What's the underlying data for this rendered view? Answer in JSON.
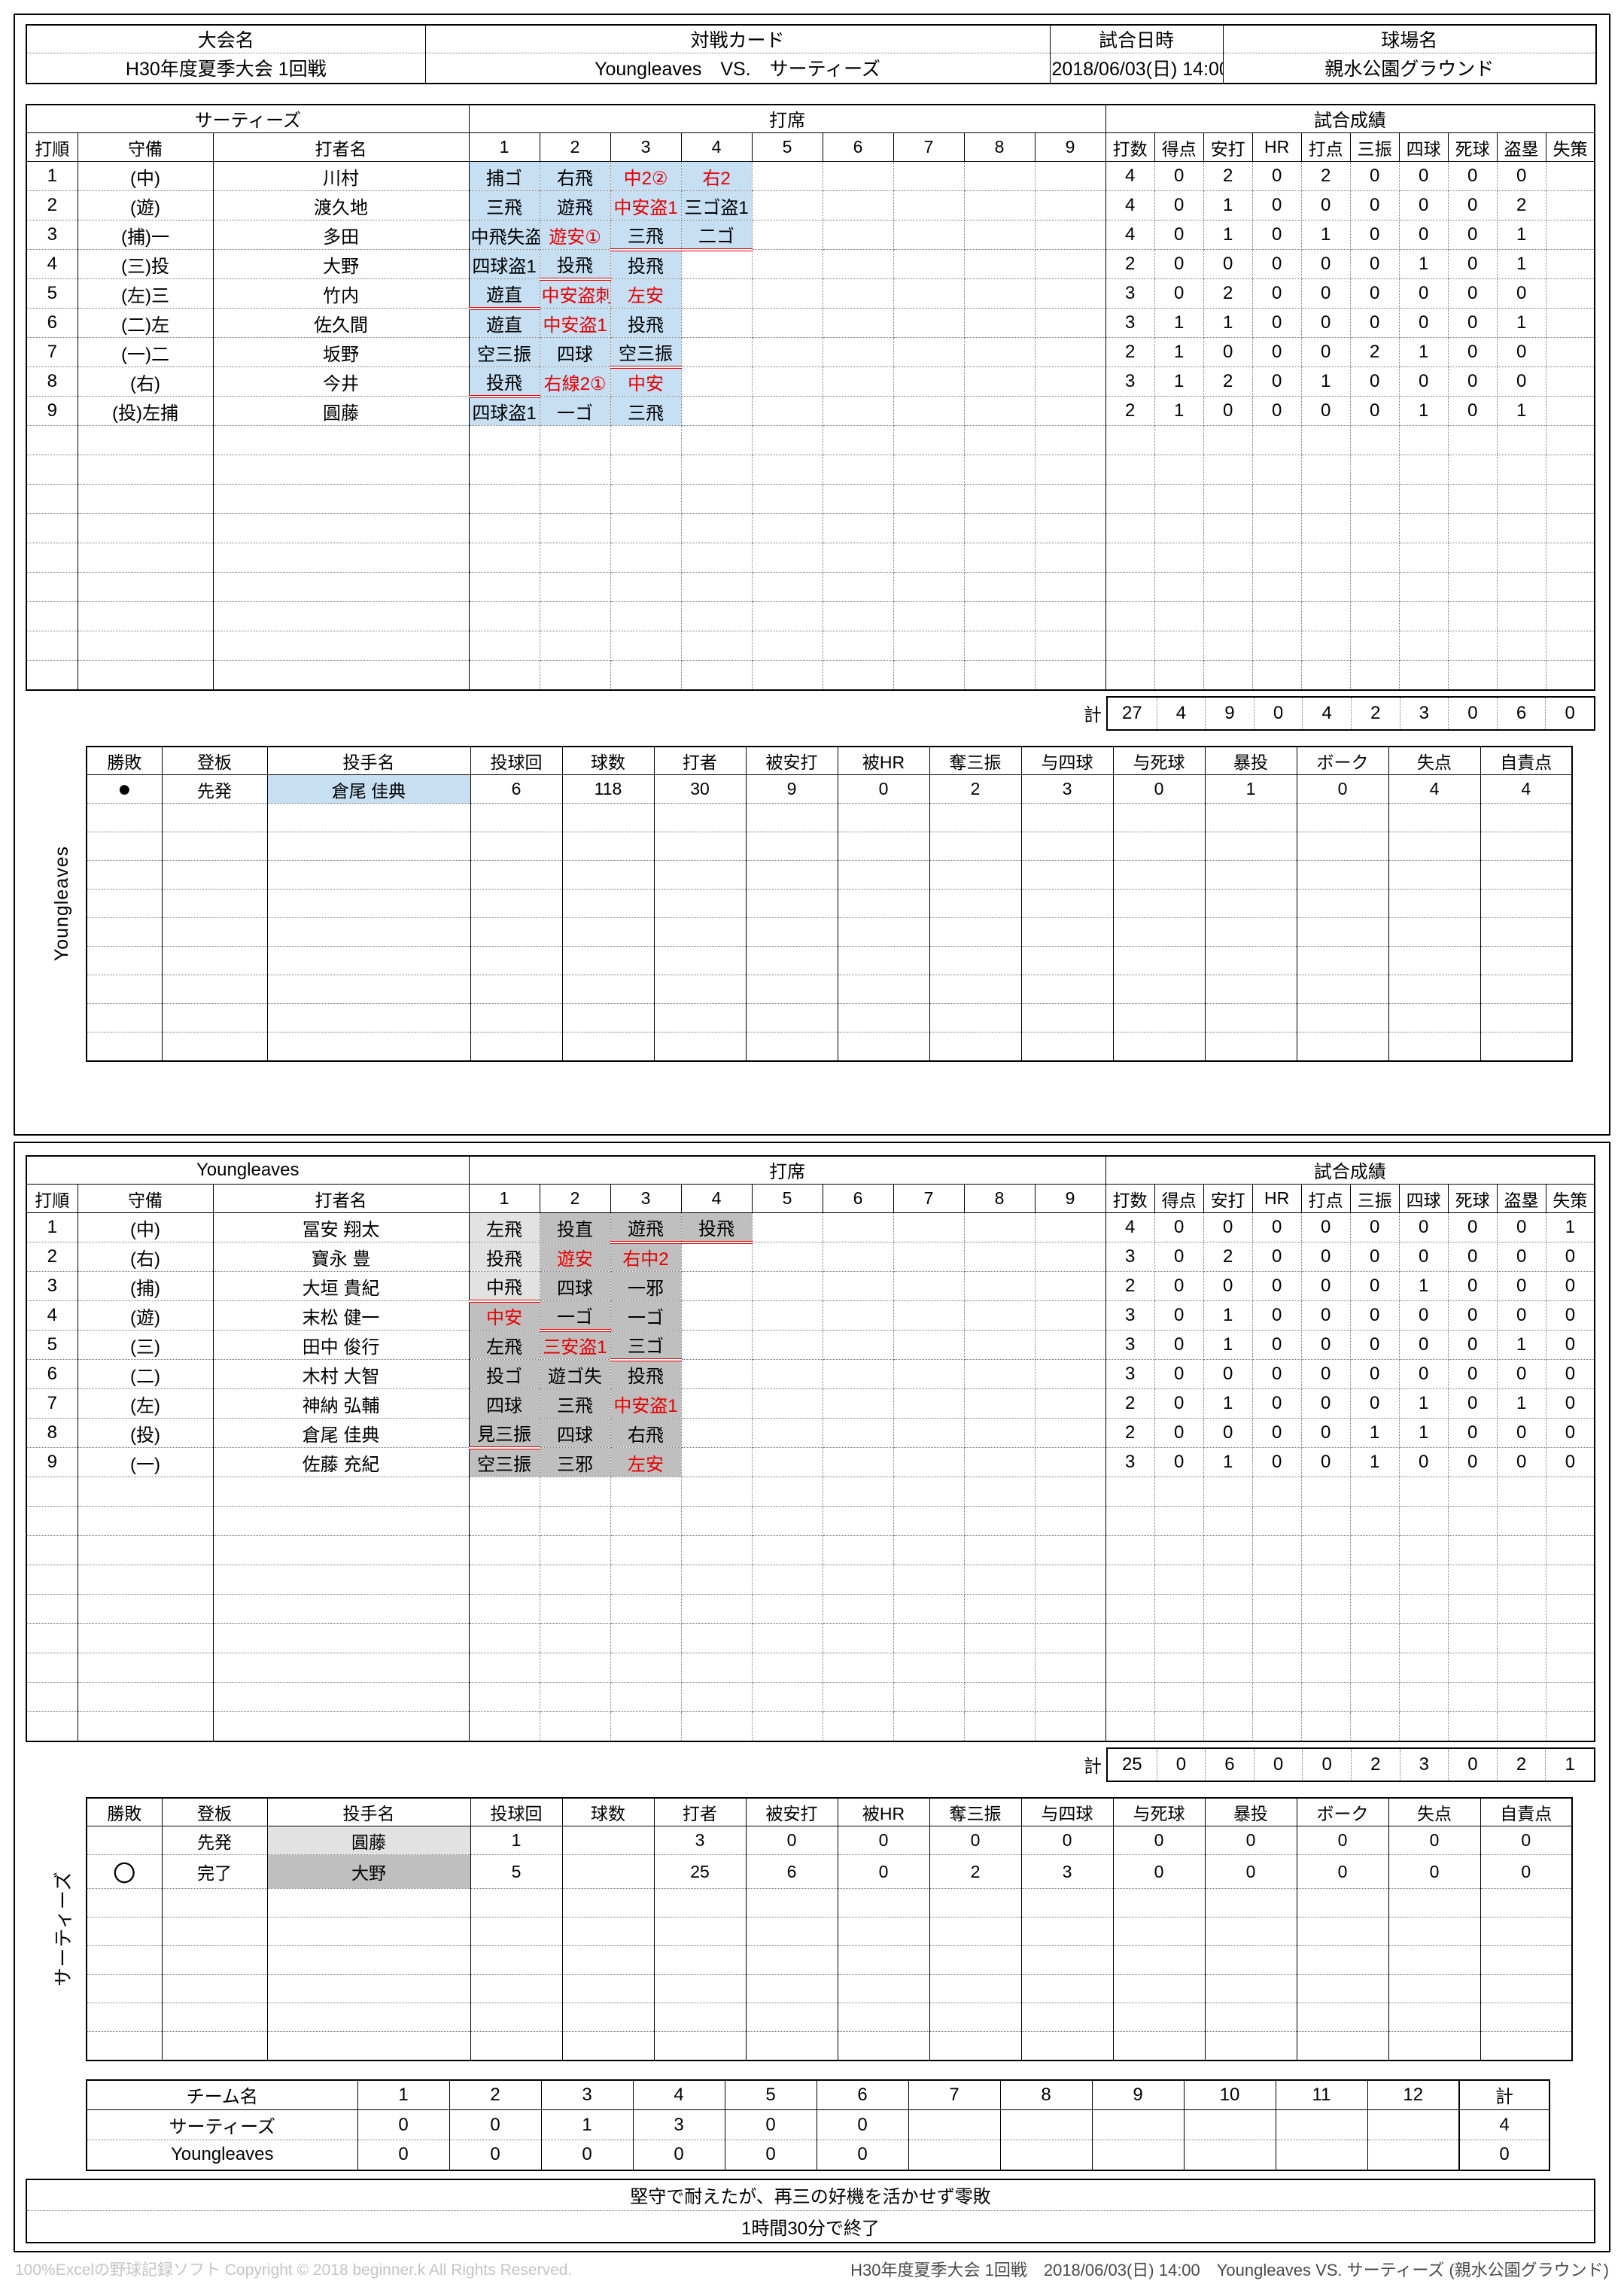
{
  "colors": {
    "highlight_blue": "#c6dff2",
    "highlight_gray": "#bfbfbf",
    "highlight_gray_light": "#e2e2e2",
    "accent_red": "#e80000"
  },
  "info": {
    "headers": [
      "大会名",
      "対戦カード",
      "試合日時",
      "球場名"
    ],
    "tournament": "H30年度夏季大会 1回戦",
    "matchup": "Youngleaves　VS.　サーティーズ",
    "datetime": "2018/06/03(日) 14:00",
    "venue": "親水公園グラウンド"
  },
  "batting_header": {
    "order": "打順",
    "position": "守備",
    "batter": "打者名",
    "seat": "打席",
    "results": "試合成績",
    "innings": [
      "1",
      "2",
      "3",
      "4",
      "5",
      "6",
      "7",
      "8",
      "9"
    ],
    "stats": [
      "打数",
      "得点",
      "安打",
      "HR",
      "打点",
      "三振",
      "四球",
      "死球",
      "盗塁",
      "失策"
    ],
    "total_label": "計"
  },
  "tables": [
    {
      "team": "サーティーズ",
      "highlight": "#c6dff2",
      "empty_rows": 9,
      "rows": [
        {
          "no": "1",
          "pos": "(中)",
          "name": "川村",
          "ab": [
            {
              "t": "捕ゴ"
            },
            {
              "t": "右飛"
            },
            {
              "t": "中2②",
              "r": true
            },
            {
              "t": "右2",
              "r": true
            }
          ],
          "stats": [
            "4",
            "0",
            "2",
            "0",
            "2",
            "0",
            "0",
            "0",
            "0",
            ""
          ]
        },
        {
          "no": "2",
          "pos": "(遊)",
          "name": "渡久地",
          "ab": [
            {
              "t": "三飛"
            },
            {
              "t": "遊飛"
            },
            {
              "t": "中安盗1",
              "r": true
            },
            {
              "t": "三ゴ盗1"
            }
          ],
          "stats": [
            "4",
            "0",
            "1",
            "0",
            "0",
            "0",
            "0",
            "0",
            "2",
            ""
          ]
        },
        {
          "no": "3",
          "pos": "(捕)一",
          "name": "多田",
          "ab": [
            {
              "t": "中飛失盗1"
            },
            {
              "t": "遊安①",
              "r": true
            },
            {
              "t": "三飛",
              "u": true
            },
            {
              "t": "二ゴ",
              "u": true
            }
          ],
          "stats": [
            "4",
            "0",
            "1",
            "0",
            "1",
            "0",
            "0",
            "0",
            "1",
            ""
          ]
        },
        {
          "no": "4",
          "pos": "(三)投",
          "name": "大野",
          "ab": [
            {
              "t": "四球盗1"
            },
            {
              "t": "投飛",
              "u": true
            },
            {
              "t": "投飛"
            }
          ],
          "stats": [
            "2",
            "0",
            "0",
            "0",
            "0",
            "0",
            "1",
            "0",
            "1",
            ""
          ]
        },
        {
          "no": "5",
          "pos": "(左)三",
          "name": "竹内",
          "ab": [
            {
              "t": "遊直",
              "u": true
            },
            {
              "t": "中安盗刺",
              "r": true
            },
            {
              "t": "左安",
              "r": true
            }
          ],
          "stats": [
            "3",
            "0",
            "2",
            "0",
            "0",
            "0",
            "0",
            "0",
            "0",
            ""
          ]
        },
        {
          "no": "6",
          "pos": "(二)左",
          "name": "佐久間",
          "ab": [
            {
              "t": "遊直"
            },
            {
              "t": "中安盗1",
              "r": true
            },
            {
              "t": "投飛"
            }
          ],
          "stats": [
            "3",
            "1",
            "1",
            "0",
            "0",
            "0",
            "0",
            "0",
            "1",
            ""
          ]
        },
        {
          "no": "7",
          "pos": "(一)二",
          "name": "坂野",
          "ab": [
            {
              "t": "空三振"
            },
            {
              "t": "四球"
            },
            {
              "t": "空三振",
              "u": true
            }
          ],
          "stats": [
            "2",
            "1",
            "0",
            "0",
            "0",
            "2",
            "1",
            "0",
            "0",
            ""
          ]
        },
        {
          "no": "8",
          "pos": "(右)",
          "name": "今井",
          "ab": [
            {
              "t": "投飛",
              "u": true
            },
            {
              "t": "右線2①",
              "r": true
            },
            {
              "t": "中安",
              "r": true
            }
          ],
          "stats": [
            "3",
            "1",
            "2",
            "0",
            "1",
            "0",
            "0",
            "0",
            "0",
            ""
          ]
        },
        {
          "no": "9",
          "pos": "(投)左捕",
          "name": "圓藤",
          "ab": [
            {
              "t": "四球盗1"
            },
            {
              "t": "一ゴ"
            },
            {
              "t": "三飛"
            }
          ],
          "stats": [
            "2",
            "1",
            "0",
            "0",
            "0",
            "0",
            "1",
            "0",
            "1",
            ""
          ]
        }
      ],
      "totals": [
        "27",
        "4",
        "9",
        "0",
        "4",
        "2",
        "3",
        "0",
        "6",
        "0"
      ]
    },
    {
      "team": "Youngleaves",
      "highlight": "#bfbfbf",
      "empty_rows": 9,
      "rows": [
        {
          "no": "1",
          "pos": "(中)",
          "name": "冨安 翔太",
          "ab": [
            {
              "t": "左飛",
              "l": true
            },
            {
              "t": "投直"
            },
            {
              "t": "遊飛",
              "u": true
            },
            {
              "t": "投飛",
              "u": true
            }
          ],
          "stats": [
            "4",
            "0",
            "0",
            "0",
            "0",
            "0",
            "0",
            "0",
            "0",
            "1"
          ]
        },
        {
          "no": "2",
          "pos": "(右)",
          "name": "寶永 豊",
          "ab": [
            {
              "t": "投飛",
              "l": true
            },
            {
              "t": "遊安",
              "r": true
            },
            {
              "t": "右中2",
              "r": true
            }
          ],
          "stats": [
            "3",
            "0",
            "2",
            "0",
            "0",
            "0",
            "0",
            "0",
            "0",
            "0"
          ]
        },
        {
          "no": "3",
          "pos": "(捕)",
          "name": "大垣 貴紀",
          "ab": [
            {
              "t": "中飛",
              "l": true,
              "u": true
            },
            {
              "t": "四球"
            },
            {
              "t": "一邪"
            }
          ],
          "stats": [
            "2",
            "0",
            "0",
            "0",
            "0",
            "0",
            "1",
            "0",
            "0",
            "0"
          ]
        },
        {
          "no": "4",
          "pos": "(遊)",
          "name": "末松 健一",
          "ab": [
            {
              "t": "中安",
              "r": true
            },
            {
              "t": "一ゴ",
              "u": true
            },
            {
              "t": "一ゴ"
            }
          ],
          "stats": [
            "3",
            "0",
            "1",
            "0",
            "0",
            "0",
            "0",
            "0",
            "0",
            "0"
          ]
        },
        {
          "no": "5",
          "pos": "(三)",
          "name": "田中 俊行",
          "ab": [
            {
              "t": "左飛"
            },
            {
              "t": "三安盗1",
              "r": true
            },
            {
              "t": "三ゴ",
              "u": true
            }
          ],
          "stats": [
            "3",
            "0",
            "1",
            "0",
            "0",
            "0",
            "0",
            "0",
            "1",
            "0"
          ]
        },
        {
          "no": "6",
          "pos": "(二)",
          "name": "木村 大智",
          "ab": [
            {
              "t": "投ゴ"
            },
            {
              "t": "遊ゴ失"
            },
            {
              "t": "投飛"
            }
          ],
          "stats": [
            "3",
            "0",
            "0",
            "0",
            "0",
            "0",
            "0",
            "0",
            "0",
            "0"
          ]
        },
        {
          "no": "7",
          "pos": "(左)",
          "name": "神納 弘輔",
          "ab": [
            {
              "t": "四球"
            },
            {
              "t": "三飛"
            },
            {
              "t": "中安盗1",
              "r": true
            }
          ],
          "stats": [
            "2",
            "0",
            "1",
            "0",
            "0",
            "0",
            "1",
            "0",
            "1",
            "0"
          ]
        },
        {
          "no": "8",
          "pos": "(投)",
          "name": "倉尾 佳典",
          "ab": [
            {
              "t": "見三振",
              "u": true
            },
            {
              "t": "四球"
            },
            {
              "t": "右飛"
            }
          ],
          "stats": [
            "2",
            "0",
            "0",
            "0",
            "0",
            "1",
            "1",
            "0",
            "0",
            "0"
          ]
        },
        {
          "no": "9",
          "pos": "(一)",
          "name": "佐藤 充紀",
          "ab": [
            {
              "t": "空三振"
            },
            {
              "t": "三邪"
            },
            {
              "t": "左安",
              "r": true
            }
          ],
          "stats": [
            "3",
            "0",
            "1",
            "0",
            "0",
            "1",
            "0",
            "0",
            "0",
            "0"
          ]
        }
      ],
      "totals": [
        "25",
        "0",
        "6",
        "0",
        "0",
        "2",
        "3",
        "0",
        "2",
        "1"
      ]
    }
  ],
  "pitching_header": [
    "勝敗",
    "登板",
    "投手名",
    "投球回",
    "球数",
    "打者",
    "被安打",
    "被HR",
    "奪三振",
    "与四球",
    "与死球",
    "暴投",
    "ボーク",
    "失点",
    "自責点"
  ],
  "pitching": [
    {
      "team_label": "Youngleaves",
      "empty_rows": 9,
      "rows": [
        {
          "result": "●",
          "role": "先発",
          "name": "倉尾 佳典",
          "name_bg": "blue",
          "values": [
            "6",
            "118",
            "30",
            "9",
            "0",
            "2",
            "3",
            "0",
            "1",
            "0",
            "4",
            "4"
          ]
        }
      ]
    },
    {
      "team_label": "サーティーズ",
      "empty_rows": 6,
      "rows": [
        {
          "result": "",
          "role": "先発",
          "name": "圓藤",
          "name_bg": "gray_light",
          "values": [
            "1",
            "",
            "3",
            "0",
            "0",
            "0",
            "0",
            "0",
            "0",
            "0",
            "0",
            "0"
          ]
        },
        {
          "result": "〇",
          "role": "完了",
          "name": "大野",
          "name_bg": "gray",
          "values": [
            "5",
            "",
            "25",
            "6",
            "0",
            "2",
            "3",
            "0",
            "0",
            "0",
            "0",
            "0"
          ]
        }
      ]
    }
  ],
  "line_score": {
    "team_col": "チーム名",
    "innings": [
      "1",
      "2",
      "3",
      "4",
      "5",
      "6",
      "7",
      "8",
      "9",
      "10",
      "11",
      "12"
    ],
    "total_label": "計",
    "rows": [
      {
        "team": "サーティーズ",
        "scores": [
          "0",
          "0",
          "1",
          "3",
          "0",
          "0",
          "",
          "",
          "",
          "",
          "",
          ""
        ],
        "total": "4"
      },
      {
        "team": "Youngleaves",
        "scores": [
          "0",
          "0",
          "0",
          "0",
          "0",
          "0",
          "",
          "",
          "",
          "",
          "",
          ""
        ],
        "total": "0"
      }
    ]
  },
  "comment": {
    "line1": "堅守で耐えたが、再三の好機を活かせず零敗",
    "line2": "1時間30分で終了"
  },
  "footer": {
    "left": "100%Excelの野球記録ソフト Copyright © 2018 beginner.k All Rights Reserved.",
    "right": "H30年度夏季大会 1回戦　2018/06/03(日) 14:00　Youngleaves VS. サーティーズ (親水公園グラウンド)"
  }
}
